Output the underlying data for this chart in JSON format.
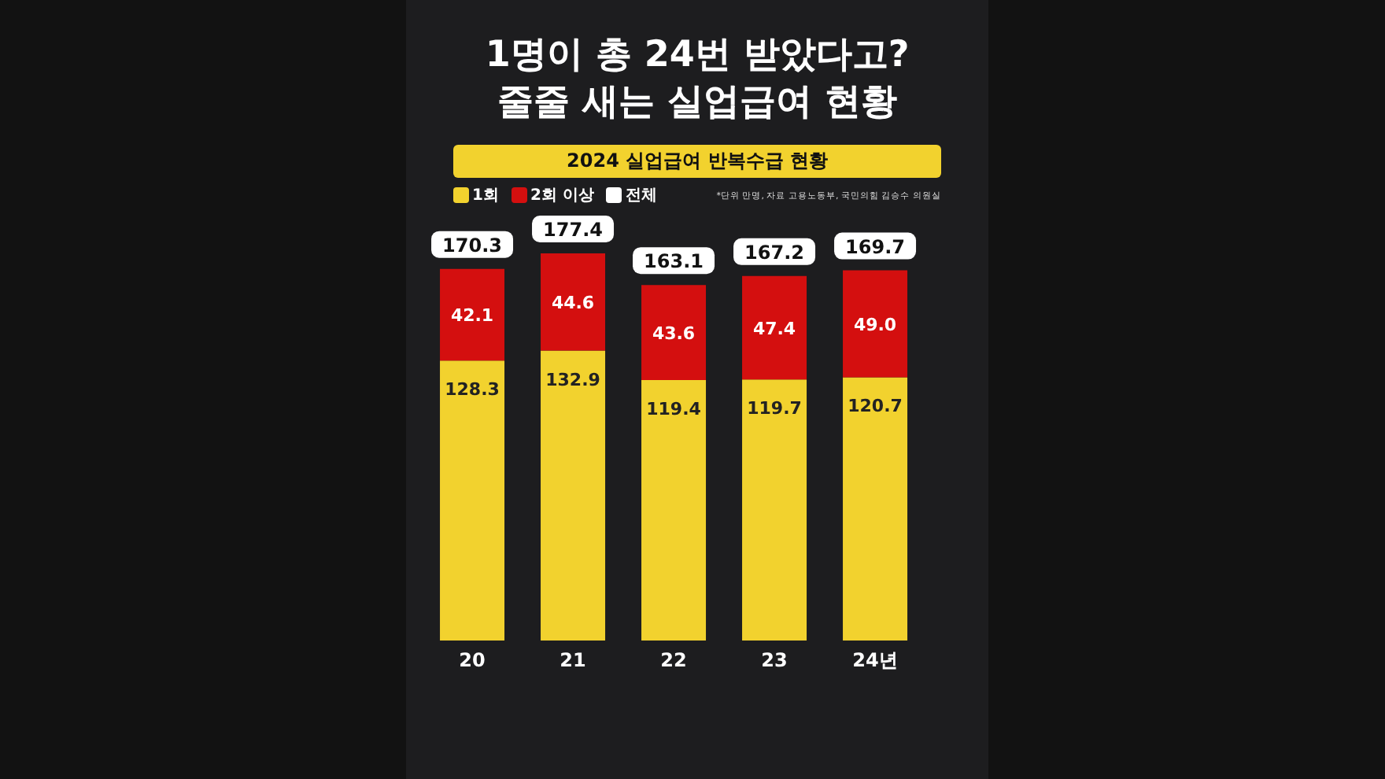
{
  "chart_data": {
    "type": "bar",
    "title": "1명이 총 24번 받았다고?\n줄줄 새는 실업급여 현황",
    "subtitle": "2024 실업급여 반복수급 현황",
    "annotations": [
      "*단위 만명, 자료 고용노동부, 국민의힘 김승수 의원실"
    ],
    "categories": [
      "20",
      "21",
      "22",
      "23",
      "24년"
    ],
    "series": [
      {
        "name": "1회",
        "color": "#f2d22e",
        "values": [
          128.3,
          132.9,
          119.4,
          119.7,
          120.7
        ],
        "value_labels": [
          "128.3",
          "132.9",
          "119.4",
          "119.7",
          "120.7"
        ]
      },
      {
        "name": "2회 이상",
        "color": "#d40f0f",
        "values": [
          42.1,
          44.6,
          43.6,
          47.4,
          49.0
        ],
        "value_labels": [
          "42.1",
          "44.6",
          "43.6",
          "47.4",
          "49.0"
        ]
      },
      {
        "name": "전체",
        "color": "#ffffff",
        "values": [
          null,
          null,
          null,
          null,
          null
        ]
      }
    ],
    "stacked": true,
    "totals": [
      "170.3",
      "177.4",
      "163.1",
      "167.2",
      "169.7"
    ],
    "legend": "top left",
    "tick_labels": "x",
    "grid": false
  }
}
